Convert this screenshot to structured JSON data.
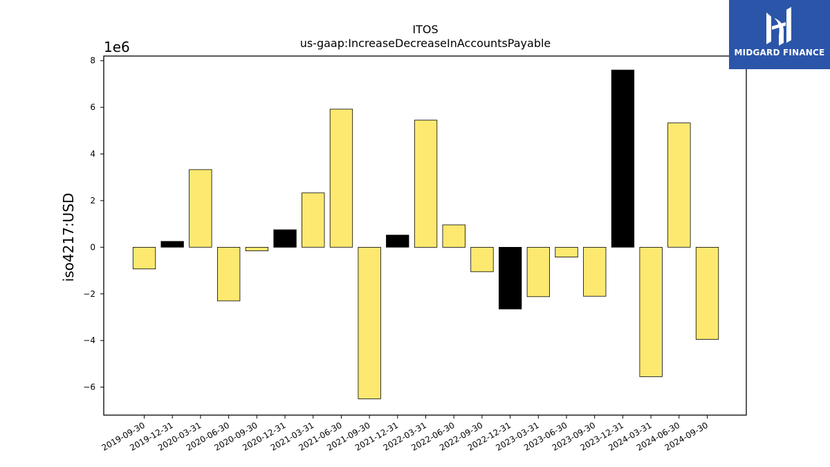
{
  "chart_data": {
    "type": "bar",
    "title": "ITOS",
    "subtitle": "us-gaap:IncreaseDecreaseInAccountsPayable",
    "ylabel": "iso4217:USD",
    "xlabel": "",
    "scale_label": "1e6",
    "ylim": [
      -7.2,
      8.2
    ],
    "yticks": [
      -6,
      -4,
      -2,
      0,
      2,
      4,
      6,
      8
    ],
    "ytick_labels": [
      "−6",
      "−4",
      "−2",
      "0",
      "2",
      "4",
      "6",
      "8"
    ],
    "grid": false,
    "categories": [
      "2019-09-30",
      "2019-12-31",
      "2020-03-31",
      "2020-06-30",
      "2020-09-30",
      "2020-12-31",
      "2021-03-31",
      "2021-06-30",
      "2021-09-30",
      "2021-12-31",
      "2022-03-31",
      "2022-06-30",
      "2022-09-30",
      "2022-12-31",
      "2023-03-31",
      "2023-06-30",
      "2023-09-30",
      "2023-12-31",
      "2024-03-31",
      "2024-06-30",
      "2024-09-30"
    ],
    "values": [
      -0.93,
      0.25,
      3.33,
      -2.3,
      -0.15,
      0.75,
      2.33,
      5.92,
      -6.5,
      0.52,
      5.45,
      0.96,
      -1.05,
      -2.65,
      -2.12,
      -0.42,
      -2.1,
      7.6,
      -5.55,
      5.33,
      -3.95
    ],
    "bar_colors": [
      "#fde970",
      "#000000",
      "#fde970",
      "#fde970",
      "#fde970",
      "#000000",
      "#fde970",
      "#fde970",
      "#fde970",
      "#000000",
      "#fde970",
      "#fde970",
      "#fde970",
      "#000000",
      "#fde970",
      "#fde970",
      "#fde970",
      "#000000",
      "#fde970",
      "#fde970",
      "#fde970"
    ]
  },
  "logo": {
    "text": "MIDGARD FINANCE",
    "background": "#2b55a8"
  }
}
